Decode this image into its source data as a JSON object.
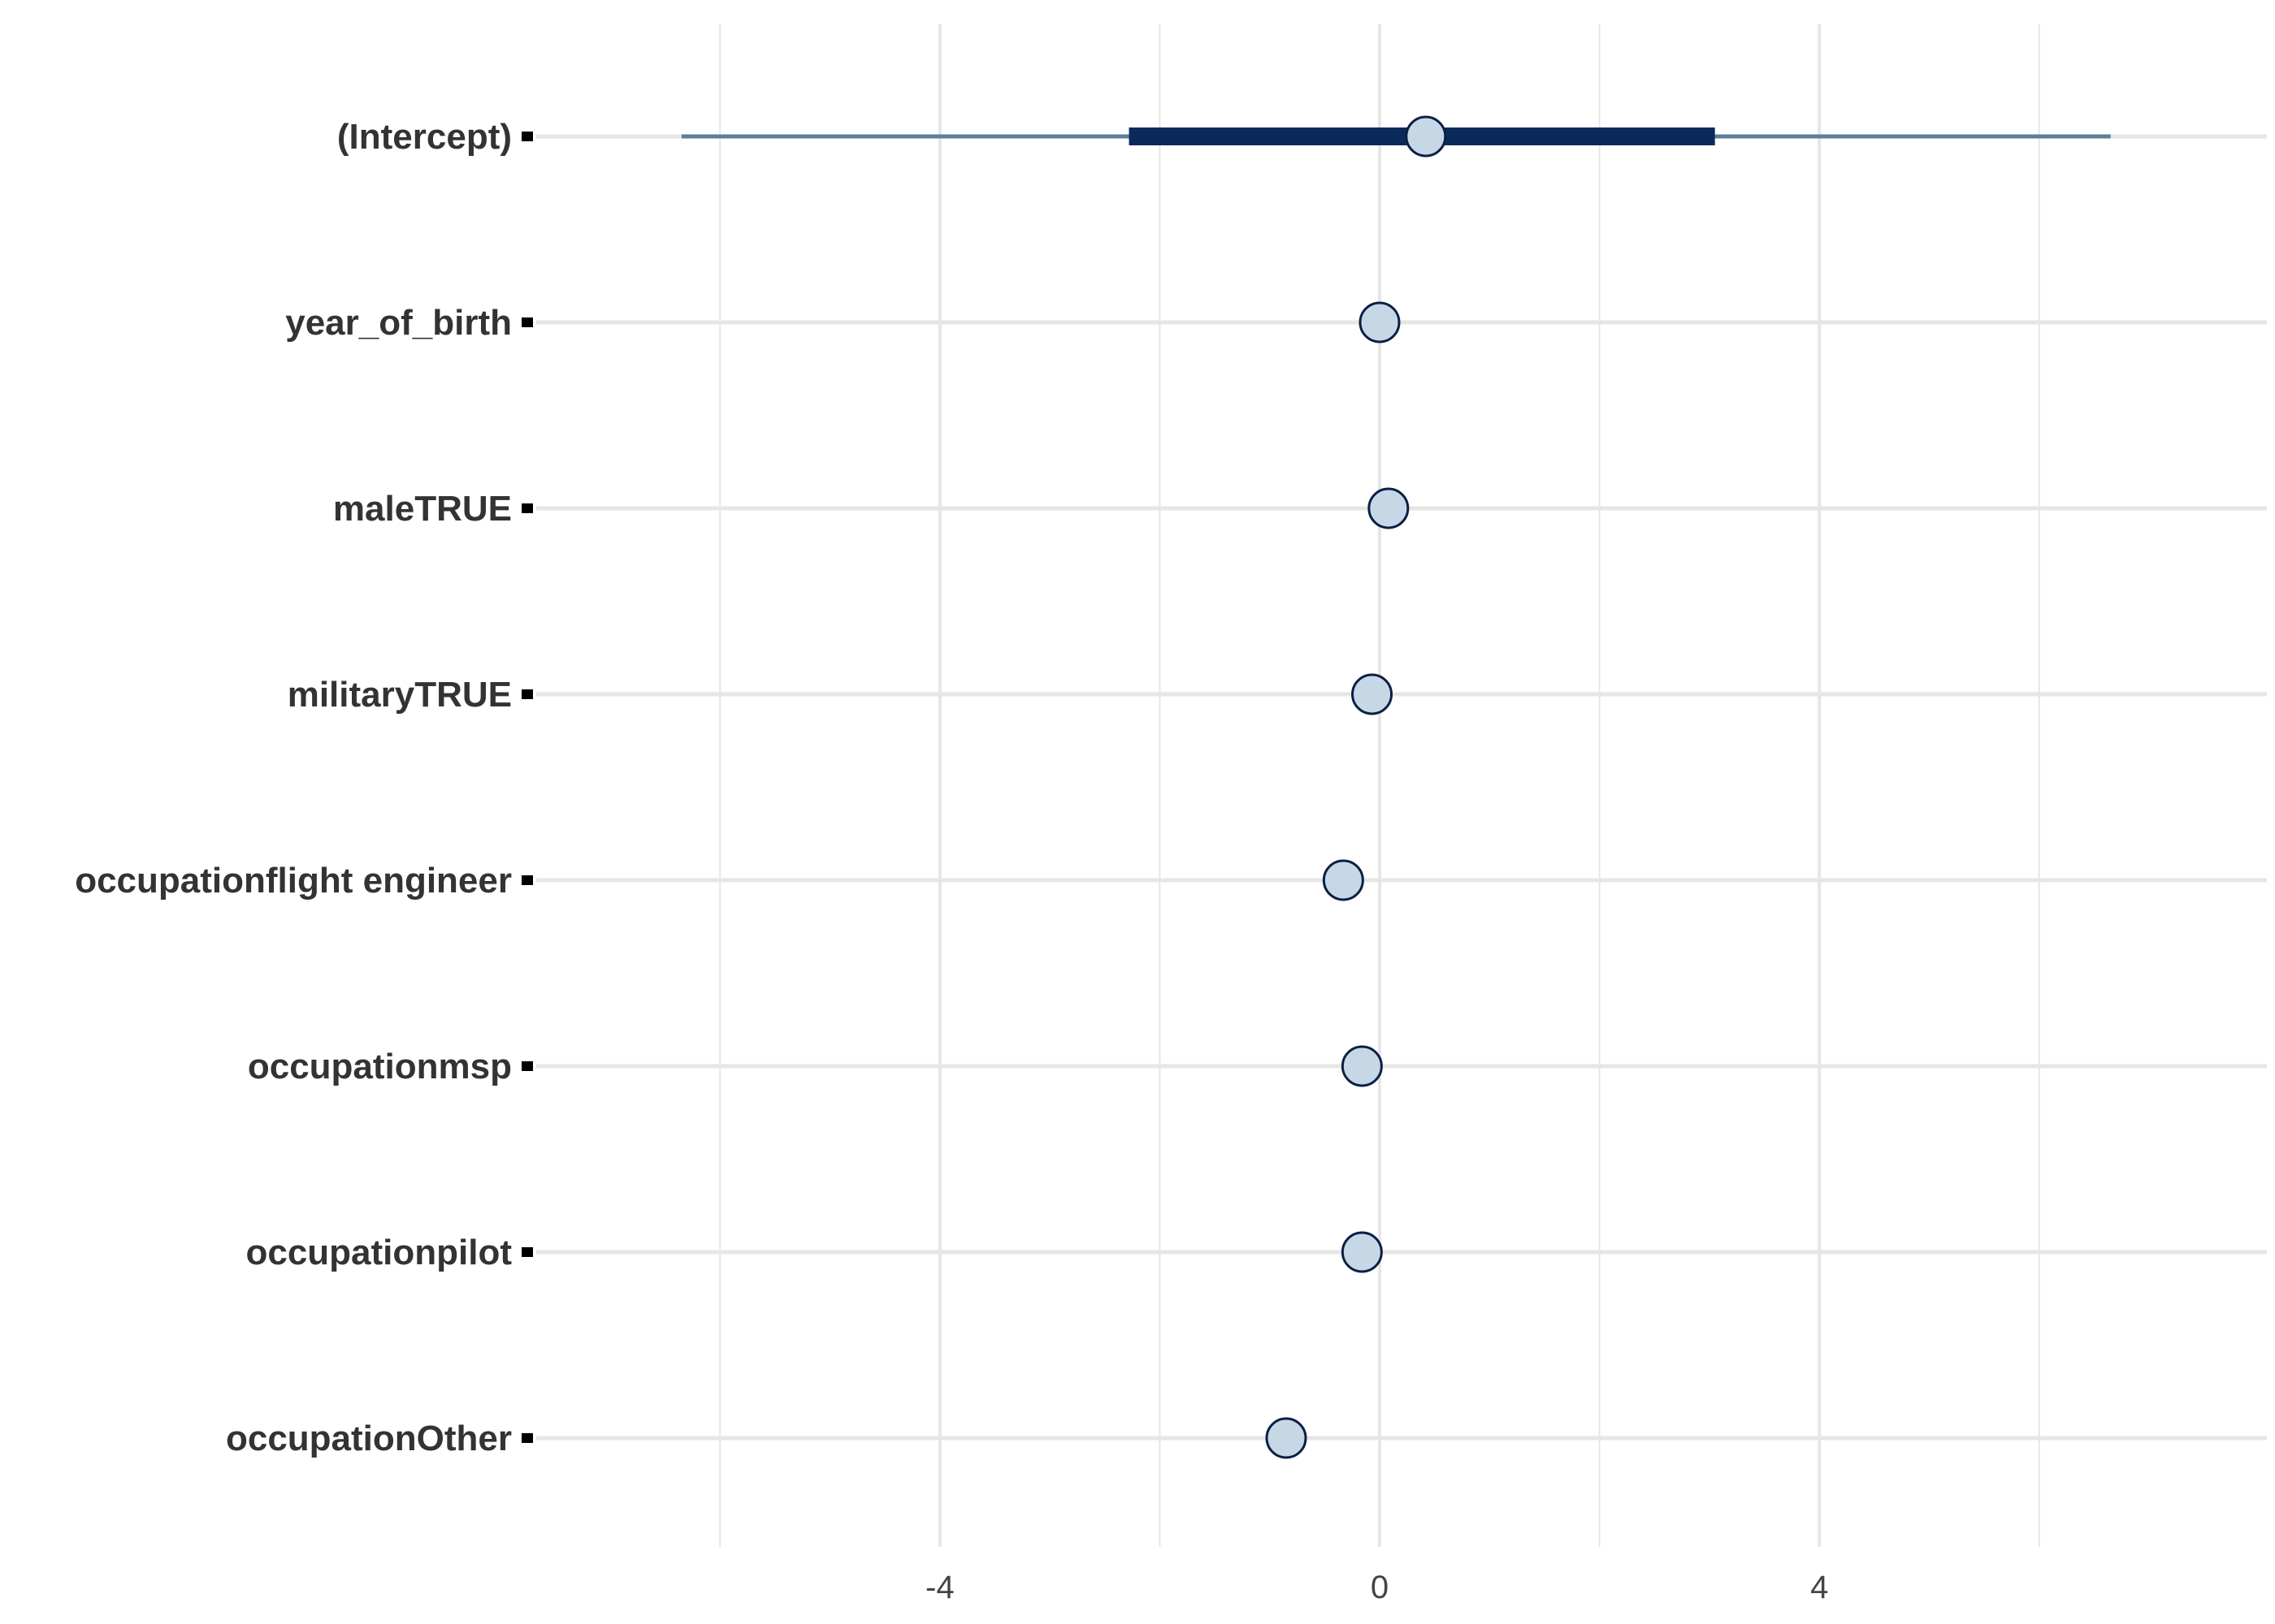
{
  "chart_data": {
    "type": "interval",
    "title": "",
    "xlabel": "",
    "ylabel": "",
    "xlim": [
      -10.5,
      8
    ],
    "x_major_ticks": [
      -4,
      0,
      4
    ],
    "x_minor_grid": [
      -6,
      -2,
      2,
      6
    ],
    "grid": true,
    "legend": "none",
    "categories": [
      "(Intercept)",
      "year_of_birth",
      "maleTRUE",
      "militaryTRUE",
      "occupationflight engineer",
      "occupationmsp",
      "occupationpilot",
      "occupationOther"
    ],
    "estimates": [
      0.42,
      0.0,
      0.08,
      -0.07,
      -0.33,
      -0.16,
      -0.16,
      -0.85
    ],
    "inner_interval": [
      [
        -2.28,
        3.05
      ],
      [
        -0.02,
        0.02
      ],
      [
        0.05,
        0.11
      ],
      [
        -0.1,
        -0.04
      ],
      [
        -0.36,
        -0.3
      ],
      [
        -0.19,
        -0.13
      ],
      [
        -0.19,
        -0.13
      ],
      [
        -0.89,
        -0.81
      ]
    ],
    "outer_interval": [
      [
        -6.35,
        6.65
      ],
      [
        -0.04,
        0.04
      ],
      [
        0.02,
        0.14
      ],
      [
        -0.13,
        -0.01
      ],
      [
        -0.4,
        -0.26
      ],
      [
        -0.22,
        -0.1
      ],
      [
        -0.22,
        -0.1
      ],
      [
        -0.93,
        -0.77
      ]
    ],
    "colors": {
      "grid": "#e6e6e6",
      "outer_line": "#5a7f9a",
      "inner_line": "#0b2a5b",
      "point_fill": "#c6d8e6",
      "point_stroke": "#0b1f44",
      "label": "#333333",
      "tick_text": "#444444"
    }
  }
}
